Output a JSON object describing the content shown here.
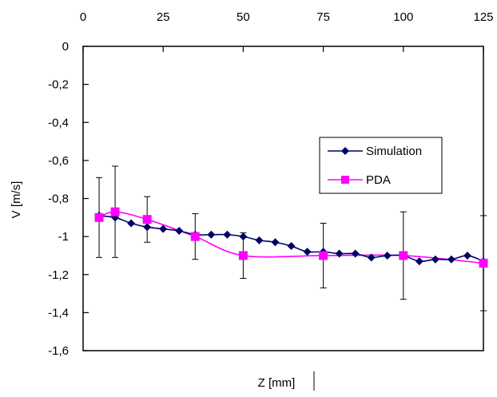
{
  "chart_data": {
    "type": "line",
    "xlabel": "Z [mm]",
    "ylabel": "V [m/s]",
    "xlim": [
      0,
      125
    ],
    "ylim": [
      -1.6,
      0
    ],
    "x_ticks": [
      0,
      25,
      50,
      75,
      100,
      125
    ],
    "x_tick_labels": [
      "0",
      "25",
      "50",
      "75",
      "100",
      "125"
    ],
    "y_ticks": [
      0,
      -0.2,
      -0.4,
      -0.6,
      -0.8,
      -1,
      -1.2,
      -1.4,
      -1.6
    ],
    "y_tick_labels": [
      "0",
      "-0,2",
      "-0,4",
      "-0,6",
      "-0,8",
      "-1",
      "-1,2",
      "-1,4",
      "-1,6"
    ],
    "x_axis_position": "top",
    "grid": false,
    "legend_position": "right-center",
    "series": [
      {
        "name": "Simulation",
        "color": "#000066",
        "marker": "diamond",
        "x": [
          5,
          10,
          15,
          20,
          25,
          30,
          35,
          40,
          45,
          50,
          55,
          60,
          65,
          70,
          75,
          80,
          85,
          90,
          95,
          100,
          105,
          110,
          115,
          120,
          125
        ],
        "y": [
          -0.89,
          -0.9,
          -0.93,
          -0.95,
          -0.96,
          -0.97,
          -0.99,
          -0.99,
          -0.99,
          -1.0,
          -1.02,
          -1.03,
          -1.05,
          -1.08,
          -1.08,
          -1.09,
          -1.09,
          -1.11,
          -1.1,
          -1.1,
          -1.13,
          -1.12,
          -1.12,
          -1.1,
          -1.13
        ]
      },
      {
        "name": "PDA",
        "color": "#ff00ff",
        "marker": "square",
        "x": [
          5,
          10,
          20,
          35,
          50,
          75,
          100,
          125
        ],
        "y": [
          -0.9,
          -0.87,
          -0.91,
          -1.0,
          -1.1,
          -1.1,
          -1.1,
          -1.14
        ],
        "error": [
          0.21,
          0.24,
          0.12,
          0.12,
          0.12,
          0.17,
          0.23,
          0.25
        ]
      }
    ]
  }
}
